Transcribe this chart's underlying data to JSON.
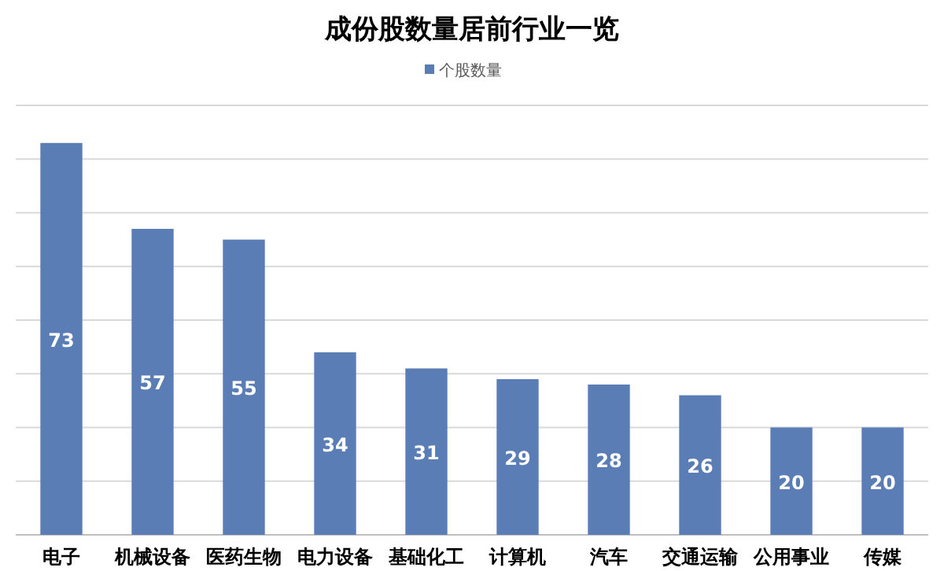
{
  "chart_data": {
    "type": "bar",
    "title": "成份股数量居前行业一览",
    "categories": [
      "电子",
      "机械设备",
      "医药生物",
      "电力设备",
      "基础化工",
      "计算机",
      "汽车",
      "交通运输",
      "公用事业",
      "传媒"
    ],
    "series": [
      {
        "name": "个股数量",
        "color": "#5a7db5",
        "values": [
          73,
          57,
          55,
          34,
          31,
          29,
          28,
          26,
          20,
          20
        ]
      }
    ],
    "ylim": [
      0,
      80
    ],
    "yticks": [
      {
        "value": 0,
        "label": null
      },
      {
        "value": 10,
        "label": null
      },
      {
        "value": 20,
        "label": null
      },
      {
        "value": 30,
        "label": null
      },
      {
        "value": 40,
        "label": null
      },
      {
        "value": 50,
        "label": null
      },
      {
        "value": 60,
        "label": null
      },
      {
        "value": 70,
        "label": null
      },
      {
        "value": 80,
        "label": null
      }
    ],
    "tick_labels": "x",
    "grid": "y",
    "legend": "top",
    "data_labels": true
  }
}
